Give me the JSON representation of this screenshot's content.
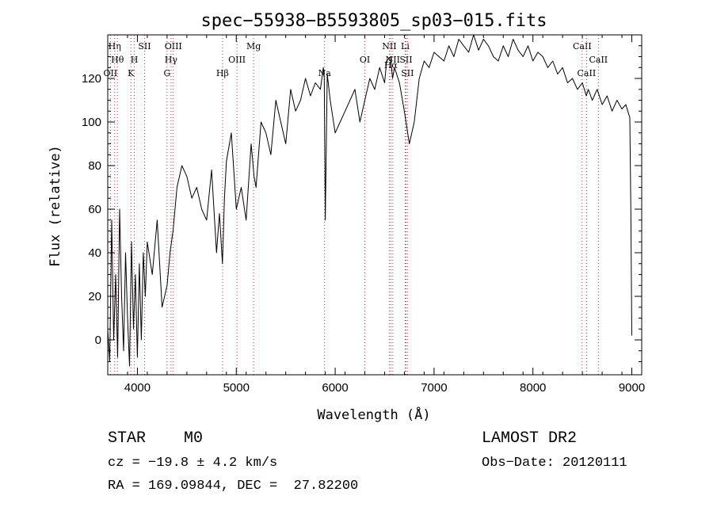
{
  "chart_data": {
    "type": "line",
    "title": "spec−55938−B5593805_sp03−015.fits",
    "xlabel": "Wavelength (Å)",
    "ylabel": "Flux (relative)",
    "xlim": [
      3700,
      9100
    ],
    "ylim": [
      -16,
      140
    ],
    "x_ticks": [
      4000,
      5000,
      6000,
      7000,
      8000,
      9000
    ],
    "y_ticks": [
      0,
      20,
      40,
      60,
      80,
      100,
      120
    ],
    "grid": false,
    "series": [
      {
        "color": "#000000",
        "x": [
          3700,
          3720,
          3740,
          3760,
          3780,
          3800,
          3820,
          3840,
          3860,
          3880,
          3900,
          3920,
          3940,
          3960,
          3980,
          4000,
          4020,
          4040,
          4060,
          4080,
          4100,
          4150,
          4200,
          4250,
          4300,
          4330,
          4360,
          4400,
          4450,
          4500,
          4550,
          4600,
          4650,
          4700,
          4750,
          4800,
          4830,
          4860,
          4880,
          4900,
          4950,
          5000,
          5050,
          5100,
          5150,
          5180,
          5200,
          5250,
          5300,
          5350,
          5400,
          5450,
          5500,
          5550,
          5600,
          5650,
          5700,
          5750,
          5800,
          5850,
          5880,
          5890,
          5900,
          5920,
          5950,
          6000,
          6050,
          6100,
          6150,
          6200,
          6250,
          6300,
          6350,
          6400,
          6450,
          6500,
          6520,
          6560,
          6580,
          6600,
          6650,
          6700,
          6750,
          6800,
          6850,
          6900,
          6950,
          7000,
          7050,
          7100,
          7150,
          7200,
          7250,
          7300,
          7350,
          7400,
          7450,
          7500,
          7550,
          7600,
          7650,
          7700,
          7750,
          7800,
          7850,
          7900,
          7950,
          8000,
          8050,
          8100,
          8150,
          8200,
          8250,
          8300,
          8350,
          8400,
          8450,
          8500,
          8540,
          8560,
          8600,
          8650,
          8700,
          8750,
          8800,
          8850,
          8900,
          8940,
          8960,
          8980,
          8990,
          9000
        ],
        "y": [
          5,
          -10,
          55,
          0,
          30,
          -8,
          60,
          20,
          -5,
          40,
          10,
          -12,
          45,
          5,
          30,
          -8,
          35,
          0,
          40,
          20,
          45,
          30,
          55,
          15,
          25,
          40,
          50,
          70,
          80,
          75,
          65,
          70,
          60,
          55,
          78,
          40,
          58,
          35,
          65,
          82,
          95,
          60,
          70,
          55,
          90,
          75,
          70,
          100,
          95,
          85,
          110,
          100,
          90,
          115,
          105,
          110,
          120,
          112,
          118,
          115,
          125,
          120,
          55,
          122,
          110,
          95,
          100,
          105,
          110,
          115,
          100,
          110,
          120,
          115,
          125,
          118,
          128,
          130,
          120,
          125,
          118,
          105,
          90,
          100,
          120,
          128,
          125,
          132,
          130,
          128,
          135,
          130,
          138,
          135,
          132,
          140,
          133,
          138,
          135,
          130,
          128,
          135,
          130,
          138,
          133,
          130,
          135,
          128,
          132,
          130,
          125,
          128,
          122,
          125,
          118,
          120,
          115,
          118,
          112,
          115,
          110,
          115,
          108,
          112,
          105,
          110,
          106,
          108,
          105,
          102,
          60,
          2
        ]
      }
    ],
    "lines": [
      {
        "wl": 3727,
        "label": "OII",
        "row": 2
      },
      {
        "wl": 3770,
        "label": "Hη",
        "row": 0
      },
      {
        "wl": 3798,
        "label": "Hθ",
        "row": 1
      },
      {
        "wl": 3934,
        "label": "K",
        "row": 2
      },
      {
        "wl": 3969,
        "label": "H",
        "row": 1
      },
      {
        "wl": 4072,
        "label": "SII",
        "row": 0
      },
      {
        "wl": 4300,
        "label": "G",
        "row": 2
      },
      {
        "wl": 4340,
        "label": "Hγ",
        "row": 1
      },
      {
        "wl": 4363,
        "label": "OIII",
        "row": 0
      },
      {
        "wl": 4861,
        "label": "Hβ",
        "row": 2
      },
      {
        "wl": 5007,
        "label": "OIII",
        "row": 1
      },
      {
        "wl": 5175,
        "label": "Mg",
        "row": 0
      },
      {
        "wl": 5893,
        "label": "Na",
        "row": 2
      },
      {
        "wl": 6300,
        "label": "OI",
        "row": 1
      },
      {
        "wl": 6548,
        "label": "NII",
        "row": 0
      },
      {
        "wl": 6563,
        "label": "Hα",
        "row": 3
      },
      {
        "wl": 6583,
        "label": "NII",
        "row": 1
      },
      {
        "wl": 6708,
        "label": "Li",
        "row": 0
      },
      {
        "wl": 6716,
        "label": "SII",
        "row": 1
      },
      {
        "wl": 6731,
        "label": "SII",
        "row": 2
      },
      {
        "wl": 8498,
        "label": "CaII",
        "row": 0
      },
      {
        "wl": 8542,
        "label": "CaII",
        "row": 2
      },
      {
        "wl": 8662,
        "label": "CaII",
        "row": 1
      }
    ]
  },
  "info": {
    "classification": "STAR    M0",
    "survey": "LAMOST DR2",
    "cz": "cz = −19.8 ± 4.2 km/s",
    "obs_date": "Obs−Date: 20120111",
    "coords": "RA = 169.09844, DEC =  27.82200"
  }
}
